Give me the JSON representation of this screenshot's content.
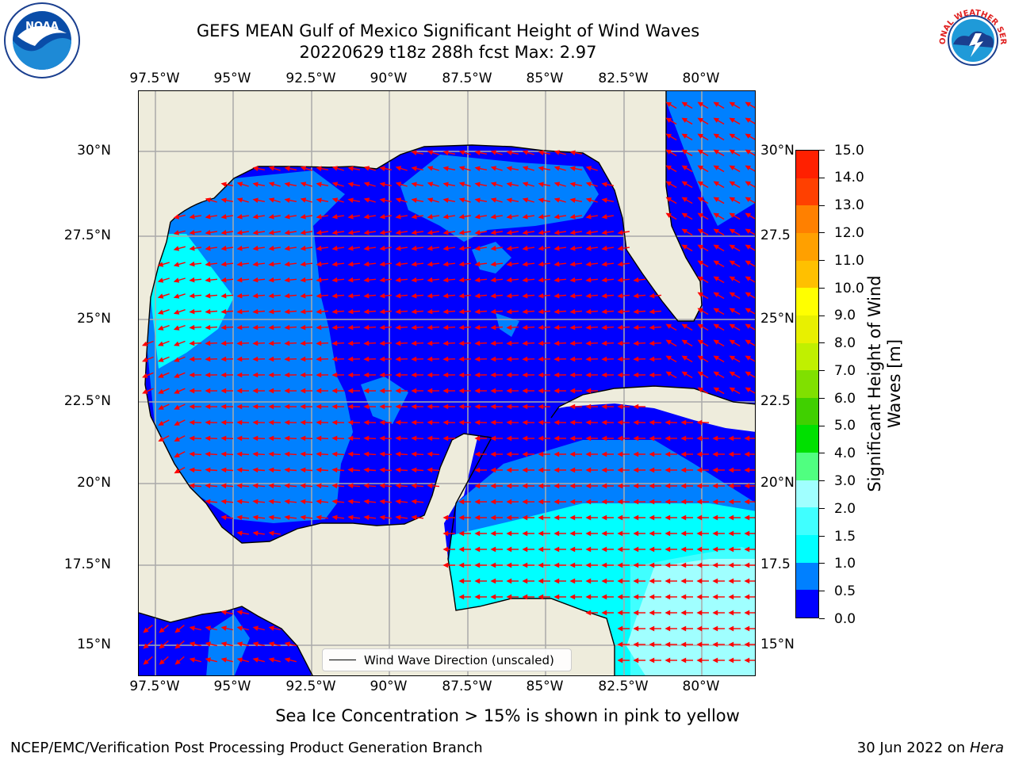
{
  "header": {
    "title_line1": "GEFS MEAN Gulf of Mexico Significant Height of Wind Waves",
    "title_line2": "20220629 t18z 288h fcst   Max: 2.97"
  },
  "logos": {
    "left": "noaa-logo",
    "right": "nws-logo",
    "right_text": "NATIONAL WEATHER SERVICE"
  },
  "map": {
    "lon_ticks": [
      "97.5°W",
      "95°W",
      "92.5°W",
      "90°W",
      "87.5°W",
      "85°W",
      "82.5°W",
      "80°W"
    ],
    "lat_ticks_left": [
      "30°N",
      "27.5°N",
      "25°N",
      "22.5°N",
      "20°N",
      "17.5°N",
      "15°N"
    ],
    "lat_ticks_right": [
      "30°N",
      "27.5",
      "25°N",
      "22.5",
      "20°N",
      "17.5",
      "15°N"
    ],
    "legend_label": "Wind Wave Direction (unscaled)",
    "land_color": "#eeecdc",
    "arrow_color": "#ff0000"
  },
  "colorbar": {
    "label_line1": "Significant Height of Wind",
    "label_line2": "Waves [m]",
    "ticks": [
      "15.0",
      "14.0",
      "13.0",
      "12.0",
      "11.0",
      "10.0",
      "9.0",
      "8.0",
      "7.0",
      "6.0",
      "5.0",
      "4.0",
      "3.0",
      "2.0",
      "1.5",
      "1.0",
      "0.5",
      "0.0"
    ],
    "colors_bottom_to_top": [
      "#0000ff",
      "#0080ff",
      "#00ffff",
      "#40ffff",
      "#a0ffff",
      "#50ff80",
      "#00e000",
      "#40d000",
      "#80e000",
      "#c0f000",
      "#e8f000",
      "#ffff00",
      "#ffc000",
      "#ffa000",
      "#ff8000",
      "#ff4000",
      "#ff2000"
    ]
  },
  "footer": {
    "sea_ice_note": "Sea Ice Concentration > 15% is shown in pink to yellow",
    "producer": "NCEP/EMC/Verification Post Processing Product Generation Branch",
    "date": "30 Jun 2022 on",
    "machine": "Hera"
  }
}
